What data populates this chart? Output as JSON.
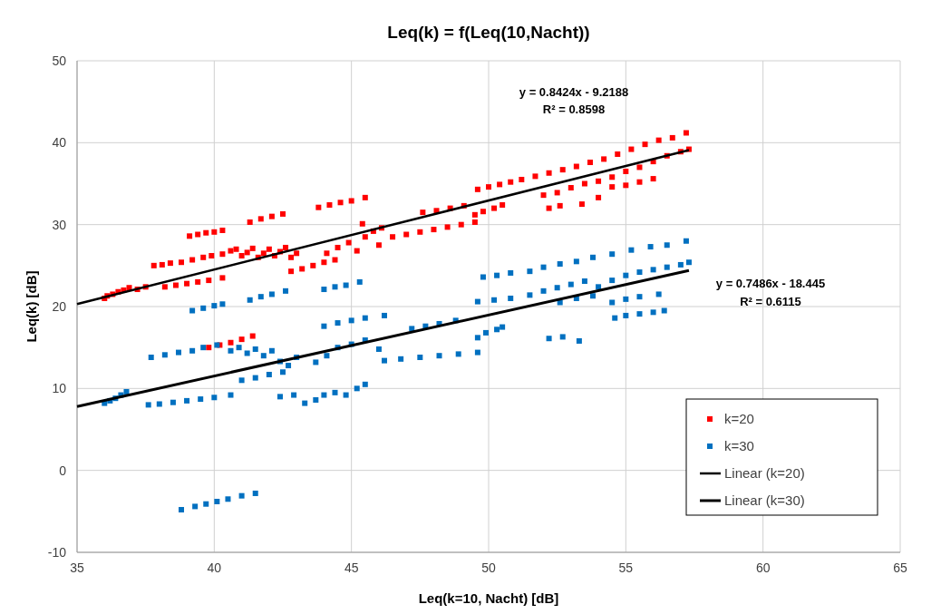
{
  "chart_data": {
    "type": "scatter",
    "title": "Leq(k) = f(Leq(10,Nacht))",
    "xlabel": "Leq(k=10, Nacht) [dB]",
    "ylabel": "Leq(k) [dB]",
    "xlim": [
      35,
      65
    ],
    "xticks": [
      35,
      40,
      45,
      50,
      55,
      60,
      65
    ],
    "ylim": [
      -10,
      50
    ],
    "yticks": [
      -10,
      0,
      10,
      20,
      30,
      40,
      50
    ],
    "grid": true,
    "legend": "bottom right",
    "marker": "square",
    "annotations": [
      "y = 0.8424x - 9.2188",
      "R² = 0.8598",
      "y = 0.7486x - 18.445",
      "R² = 0.6115"
    ],
    "series": [
      {
        "name": "k=20",
        "color": "#ff0000",
        "x": [
          36,
          36.1,
          36.3,
          36.5,
          36.7,
          36.9,
          37.2,
          37.5,
          37.8,
          38.1,
          38.4,
          38.8,
          39.2,
          39.6,
          39.9,
          38.2,
          38.6,
          39,
          39.4,
          39.8,
          40.3,
          39.1,
          39.4,
          39.7,
          40,
          40.3,
          40.3,
          40.6,
          40.8,
          41,
          41.2,
          41.4,
          41.6,
          41.8,
          42,
          42.2,
          42.4,
          42.6,
          42.8,
          43,
          41.3,
          41.7,
          42.1,
          42.5,
          42.8,
          43.2,
          43.6,
          44,
          44.4,
          43.8,
          44.2,
          44.6,
          45,
          45.5,
          44.1,
          44.5,
          44.9,
          45.2,
          45.5,
          45.8,
          46.1,
          45.4,
          46,
          46.5,
          47,
          47.5,
          48,
          48.5,
          49,
          49.5,
          47.6,
          48.1,
          48.6,
          49.1,
          49.5,
          49.8,
          50.2,
          50.5,
          49.6,
          50,
          50.4,
          50.8,
          51.2,
          51.7,
          52.2,
          52.7,
          53.2,
          53.7,
          54.2,
          54.7,
          55.2,
          55.7,
          56.2,
          56.7,
          57.2,
          52,
          52.5,
          53,
          53.5,
          54,
          54.5,
          55,
          55.5,
          56,
          56.5,
          57,
          57.3,
          52.2,
          52.6,
          53.4,
          54,
          54.5,
          55,
          55.5,
          56,
          39.8,
          40.2,
          40.6,
          41,
          41.4
        ],
        "values": [
          21,
          21.3,
          21.5,
          21.8,
          22,
          22.3,
          22.1,
          22.4,
          25,
          25.1,
          25.3,
          25.4,
          25.7,
          26,
          26.2,
          22.4,
          22.6,
          22.8,
          23,
          23.2,
          23.5,
          28.6,
          28.8,
          29,
          29.1,
          29.3,
          26.4,
          26.8,
          27,
          26.2,
          26.6,
          27.1,
          26,
          26.5,
          27,
          26.2,
          26.7,
          27.2,
          26,
          26.5,
          30.3,
          30.7,
          31,
          31.3,
          24.3,
          24.6,
          25,
          25.4,
          25.7,
          32.1,
          32.4,
          32.7,
          32.9,
          33.3,
          26.5,
          27.2,
          27.8,
          26.8,
          28.5,
          29.2,
          29.6,
          30.1,
          27.5,
          28.5,
          28.8,
          29.1,
          29.4,
          29.7,
          30,
          30.3,
          31.5,
          31.7,
          32,
          32.3,
          31.2,
          31.6,
          32,
          32.4,
          34.3,
          34.6,
          34.9,
          35.2,
          35.5,
          35.9,
          36.3,
          36.7,
          37.1,
          37.6,
          38,
          38.6,
          39.2,
          39.8,
          40.3,
          40.6,
          41.2,
          33.6,
          33.9,
          34.5,
          35,
          35.3,
          35.8,
          36.5,
          37,
          37.7,
          38.4,
          38.9,
          39.2,
          32,
          32.3,
          32.5,
          33.3,
          34.6,
          34.8,
          35.2,
          35.6,
          15,
          15.3,
          15.6,
          16,
          16.4
        ]
      },
      {
        "name": "k=30",
        "color": "#0070c0",
        "x": [
          36,
          36.2,
          36.4,
          36.6,
          36.8,
          37.6,
          38,
          38.5,
          39,
          39.5,
          40,
          40.6,
          38.8,
          39.3,
          39.7,
          40.1,
          40.5,
          41,
          41.5,
          37.7,
          38.2,
          38.7,
          39.2,
          39.6,
          40.1,
          39.2,
          39.6,
          40,
          40.3,
          41.3,
          41.7,
          42.1,
          42.6,
          40.6,
          40.9,
          41.2,
          41.5,
          41.8,
          42.1,
          42.4,
          42.7,
          43,
          41,
          41.5,
          42,
          42.5,
          42.4,
          42.9,
          43.3,
          43.7,
          44,
          44.4,
          44.8,
          45.2,
          45.5,
          44,
          44.4,
          44.8,
          45.3,
          44,
          44.5,
          45,
          45.5,
          46.2,
          43.7,
          44.1,
          44.5,
          45,
          45.5,
          46,
          46.2,
          46.8,
          47.5,
          48.2,
          48.9,
          49.6,
          47.2,
          47.7,
          48.2,
          48.8,
          49.6,
          50.2,
          50.8,
          49.6,
          49.9,
          50.3,
          50.5,
          49.8,
          50.3,
          50.8,
          51.5,
          52,
          52.6,
          53.2,
          53.8,
          54.5,
          55.2,
          55.9,
          56.5,
          57.2,
          51.5,
          52,
          52.5,
          53,
          53.5,
          54,
          54.5,
          55,
          55.5,
          56,
          56.5,
          57,
          57.3,
          52.6,
          53.2,
          53.8,
          52.2,
          52.7,
          53.3,
          54.6,
          55,
          55.5,
          56,
          56.4,
          54.5,
          55,
          55.5,
          56.2
        ],
        "values": [
          8.2,
          8.5,
          8.8,
          9.2,
          9.6,
          8,
          8.1,
          8.3,
          8.5,
          8.7,
          8.9,
          9.2,
          -4.8,
          -4.4,
          -4.1,
          -3.8,
          -3.5,
          -3.1,
          -2.8,
          13.8,
          14.1,
          14.4,
          14.6,
          15,
          15.3,
          19.5,
          19.8,
          20.1,
          20.3,
          20.8,
          21.2,
          21.5,
          21.9,
          14.6,
          15,
          14.3,
          14.8,
          14,
          14.6,
          13.3,
          12.8,
          13.8,
          11,
          11.3,
          11.7,
          12,
          9,
          9.2,
          8.2,
          8.6,
          9.2,
          9.5,
          9.2,
          10,
          10.5,
          22.1,
          22.4,
          22.6,
          23,
          17.6,
          18,
          18.3,
          18.6,
          18.9,
          13.2,
          14,
          15,
          15.4,
          15.9,
          14.8,
          13.4,
          13.6,
          13.8,
          14,
          14.2,
          14.4,
          17.3,
          17.6,
          17.9,
          18.3,
          20.6,
          20.8,
          21,
          16.2,
          16.8,
          17.2,
          17.5,
          23.6,
          23.8,
          24.1,
          24.3,
          24.8,
          25.2,
          25.5,
          26,
          26.4,
          26.9,
          27.3,
          27.5,
          28,
          21.4,
          21.9,
          22.3,
          22.7,
          23.1,
          22.4,
          23.2,
          23.8,
          24.2,
          24.5,
          24.8,
          25.1,
          25.4,
          20.5,
          21,
          21.3,
          16.1,
          16.3,
          15.8,
          18.6,
          18.9,
          19.1,
          19.3,
          19.5,
          20.5,
          20.9,
          21.2,
          21.5
        ]
      },
      {
        "name": "Linear (k=20)",
        "color": "#000000",
        "type": "line",
        "marker": "none",
        "line_style": "solid",
        "x": [
          35,
          57.3
        ],
        "values": [
          20.3,
          39.1
        ]
      },
      {
        "name": "Linear (k=30)",
        "color": "#000000",
        "type": "line",
        "marker": "none",
        "line_style": "solid",
        "x": [
          35,
          57.3
        ],
        "values": [
          7.8,
          24.4
        ]
      }
    ]
  }
}
